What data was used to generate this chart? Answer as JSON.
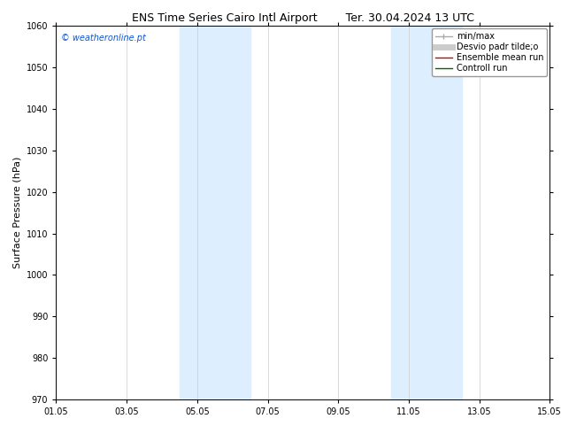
{
  "title_left": "ENS Time Series Cairo Intl Airport",
  "title_right": "Ter. 30.04.2024 13 UTC",
  "ylabel": "Surface Pressure (hPa)",
  "ylim": [
    970,
    1060
  ],
  "yticks": [
    970,
    980,
    990,
    1000,
    1010,
    1020,
    1030,
    1040,
    1050,
    1060
  ],
  "xtick_labels": [
    "01.05",
    "03.05",
    "05.05",
    "07.05",
    "09.05",
    "11.05",
    "13.05",
    "15.05"
  ],
  "xtick_positions": [
    0,
    2,
    4,
    6,
    8,
    10,
    12,
    14
  ],
  "shaded_bands": [
    {
      "xstart": 3.5,
      "xend": 5.5
    },
    {
      "xstart": 9.5,
      "xend": 11.5
    }
  ],
  "shaded_color": "#ddeeff",
  "watermark_text": "© weatheronline.pt",
  "watermark_color": "#1155cc",
  "bg_color": "#ffffff",
  "grid_color": "#cccccc",
  "title_fontsize": 9,
  "tick_fontsize": 7,
  "ylabel_fontsize": 8,
  "legend_fontsize": 7
}
